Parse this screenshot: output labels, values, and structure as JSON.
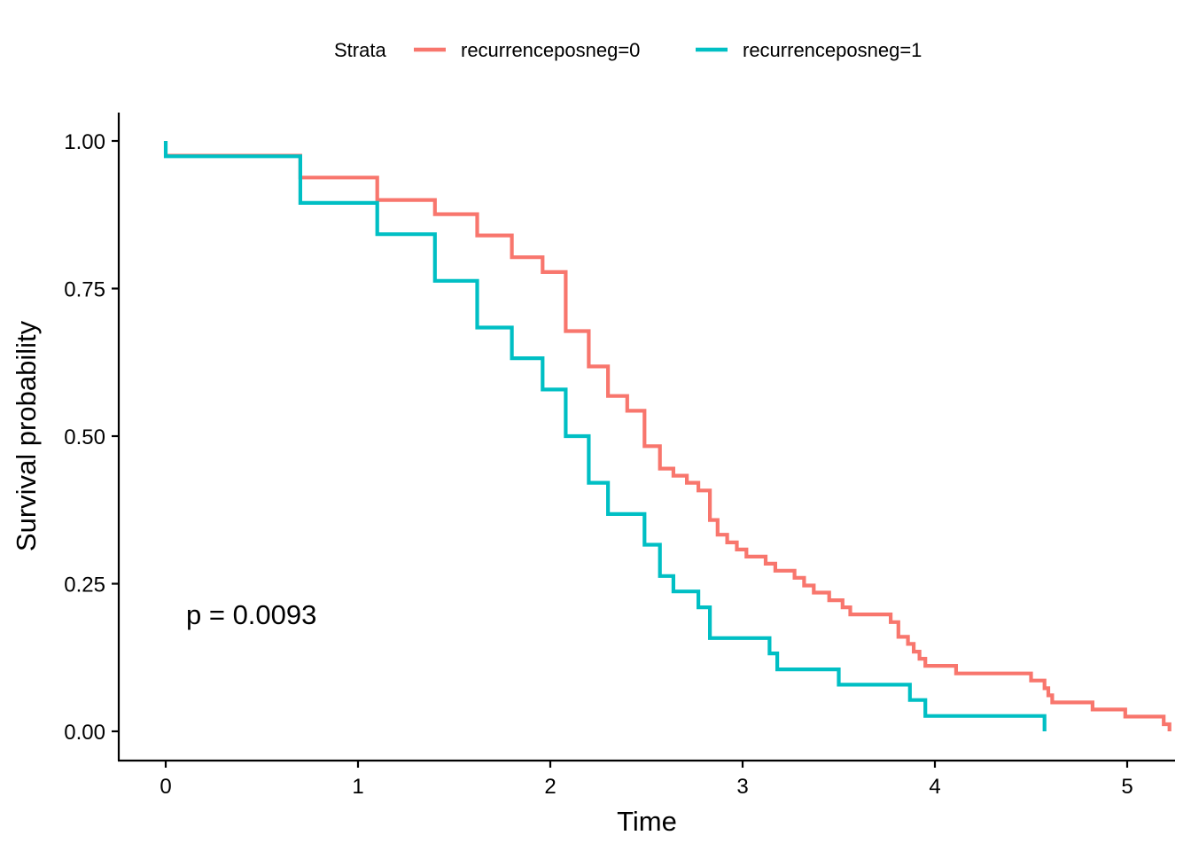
{
  "chart_data": {
    "type": "line",
    "xlabel": "Time",
    "ylabel": "Survival probability",
    "xlim": [
      -0.25,
      5.22
    ],
    "ylim": [
      -0.05,
      1.05
    ],
    "x_ticks": [
      0,
      1,
      2,
      3,
      4,
      5
    ],
    "y_ticks": [
      0.0,
      0.25,
      0.5,
      0.75,
      1.0
    ],
    "x_tick_labels": [
      "0",
      "1",
      "2",
      "3",
      "4",
      "5"
    ],
    "y_tick_labels": [
      "0.00",
      "0.25",
      "0.50",
      "0.75",
      "1.00"
    ],
    "legend": {
      "title": "Strata",
      "placement": "top",
      "entries": [
        "recurrenceposneg=0",
        "recurrenceposneg=1"
      ]
    },
    "annotation": "p = 0.0093",
    "grid": false,
    "series": [
      {
        "name": "recurrenceposneg=0",
        "color": "#F8766D",
        "step_points": [
          [
            0.0,
            0.975
          ],
          [
            0.7,
            0.938
          ],
          [
            1.1,
            0.9
          ],
          [
            1.4,
            0.876
          ],
          [
            1.62,
            0.84
          ],
          [
            1.8,
            0.803
          ],
          [
            1.96,
            0.778
          ],
          [
            2.08,
            0.678
          ],
          [
            2.2,
            0.618
          ],
          [
            2.3,
            0.568
          ],
          [
            2.4,
            0.543
          ],
          [
            2.49,
            0.483
          ],
          [
            2.57,
            0.445
          ],
          [
            2.64,
            0.433
          ],
          [
            2.71,
            0.421
          ],
          [
            2.77,
            0.408
          ],
          [
            2.83,
            0.358
          ],
          [
            2.87,
            0.333
          ],
          [
            2.92,
            0.32
          ],
          [
            2.97,
            0.308
          ],
          [
            3.02,
            0.296
          ],
          [
            3.12,
            0.284
          ],
          [
            3.17,
            0.272
          ],
          [
            3.27,
            0.26
          ],
          [
            3.32,
            0.247
          ],
          [
            3.37,
            0.235
          ],
          [
            3.45,
            0.222
          ],
          [
            3.52,
            0.21
          ],
          [
            3.56,
            0.198
          ],
          [
            3.77,
            0.185
          ],
          [
            3.81,
            0.16
          ],
          [
            3.86,
            0.148
          ],
          [
            3.89,
            0.135
          ],
          [
            3.92,
            0.123
          ],
          [
            3.95,
            0.111
          ],
          [
            4.11,
            0.098
          ],
          [
            4.5,
            0.086
          ],
          [
            4.57,
            0.073
          ],
          [
            4.59,
            0.061
          ],
          [
            4.61,
            0.049
          ],
          [
            4.82,
            0.037
          ],
          [
            4.99,
            0.025
          ],
          [
            5.19,
            0.012
          ],
          [
            5.22,
            0.0
          ]
        ]
      },
      {
        "name": "recurrenceposneg=1",
        "color": "#00BFC4",
        "step_points": [
          [
            0.0,
            1.0
          ],
          [
            0.0,
            0.974
          ],
          [
            0.7,
            0.895
          ],
          [
            1.1,
            0.842
          ],
          [
            1.4,
            0.763
          ],
          [
            1.62,
            0.684
          ],
          [
            1.8,
            0.632
          ],
          [
            1.96,
            0.579
          ],
          [
            2.08,
            0.5
          ],
          [
            2.2,
            0.421
          ],
          [
            2.3,
            0.368
          ],
          [
            2.49,
            0.316
          ],
          [
            2.57,
            0.263
          ],
          [
            2.64,
            0.237
          ],
          [
            2.77,
            0.21
          ],
          [
            2.83,
            0.158
          ],
          [
            3.14,
            0.132
          ],
          [
            3.18,
            0.105
          ],
          [
            3.5,
            0.079
          ],
          [
            3.87,
            0.053
          ],
          [
            3.95,
            0.026
          ],
          [
            4.57,
            0.0
          ]
        ]
      }
    ]
  }
}
